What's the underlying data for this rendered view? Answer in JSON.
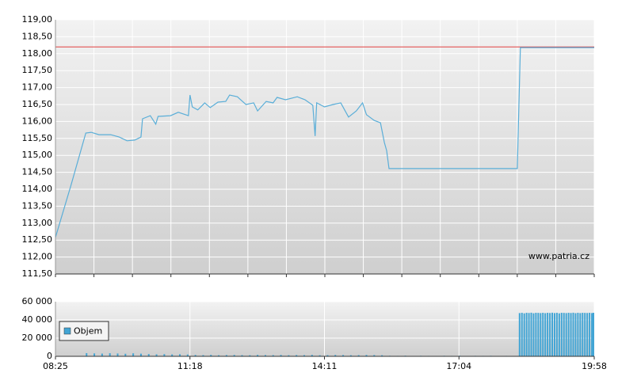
{
  "chart_data": [
    {
      "type": "line",
      "xlim": [
        505,
        1198
      ],
      "x_grid": [
        505,
        554.5,
        604,
        653.5,
        703,
        752.5,
        802,
        851.5,
        901,
        950.5,
        1000,
        1049.5,
        1099,
        1148.5,
        1198
      ],
      "ylim": [
        111.5,
        119
      ],
      "yticks": [
        {
          "value": 111.5,
          "label": "111,50"
        },
        {
          "value": 112,
          "label": "112,00"
        },
        {
          "value": 112.5,
          "label": "112,50"
        },
        {
          "value": 113,
          "label": "113,00"
        },
        {
          "value": 113.5,
          "label": "113,50"
        },
        {
          "value": 114,
          "label": "114,00"
        },
        {
          "value": 114.5,
          "label": "114,50"
        },
        {
          "value": 115,
          "label": "115,00"
        },
        {
          "value": 115.5,
          "label": "115,50"
        },
        {
          "value": 116,
          "label": "116,00"
        },
        {
          "value": 116.5,
          "label": "116,50"
        },
        {
          "value": 117,
          "label": "117,00"
        },
        {
          "value": 117.5,
          "label": "117,50"
        },
        {
          "value": 118,
          "label": "118,00"
        },
        {
          "value": 118.5,
          "label": "118,50"
        },
        {
          "value": 119,
          "label": "119,00"
        }
      ],
      "grid": true,
      "reference_line": 118.2,
      "reference_color": "#e04040",
      "watermark": "www.patria.cz",
      "series": [
        {
          "color": "#5aaed8",
          "x": [
            505,
            525,
            544,
            551,
            561,
            576,
            587,
            597,
            607,
            615,
            617,
            627,
            634,
            637,
            653,
            663,
            676,
            678,
            681,
            688,
            697,
            704,
            714,
            724,
            729,
            739,
            750,
            760,
            765,
            776,
            785,
            790,
            801,
            816,
            826,
            836,
            839,
            841,
            851,
            862,
            872,
            882,
            892,
            900,
            905,
            915,
            923,
            928,
            931,
            934,
            1099,
            1103,
            1198
          ],
          "values": [
            112.58,
            114.12,
            115.66,
            115.68,
            115.61,
            115.61,
            115.54,
            115.43,
            115.45,
            115.54,
            116.08,
            116.17,
            115.92,
            116.15,
            116.17,
            116.27,
            116.17,
            116.78,
            116.43,
            116.34,
            116.55,
            116.41,
            116.57,
            116.59,
            116.78,
            116.73,
            116.5,
            116.55,
            116.31,
            116.59,
            116.55,
            116.71,
            116.64,
            116.73,
            116.64,
            116.48,
            115.57,
            116.55,
            116.43,
            116.5,
            116.55,
            116.13,
            116.31,
            116.55,
            116.2,
            116.03,
            115.96,
            115.38,
            115.14,
            114.61,
            114.61,
            118.18,
            118.18
          ]
        }
      ]
    },
    {
      "type": "bar",
      "xlim": [
        505,
        1198
      ],
      "xticks": [
        {
          "value": 505,
          "label": "08:25"
        },
        {
          "value": 678,
          "label": "11:18"
        },
        {
          "value": 851,
          "label": "14:11"
        },
        {
          "value": 1024,
          "label": "17:04"
        },
        {
          "value": 1198,
          "label": "19:58"
        }
      ],
      "ylim": [
        0,
        60000
      ],
      "yticks": [
        0,
        {
          "value": 20000,
          "label": "20 000"
        },
        {
          "value": 40000,
          "label": "40 000"
        },
        {
          "value": 60000,
          "label": "60 000"
        }
      ],
      "grid": true,
      "legend": "upper left",
      "series": [
        {
          "name": "Objem",
          "color": "#42a5d5",
          "x": [
            545,
            555,
            565,
            575,
            585,
            595,
            605,
            615,
            625,
            635,
            645,
            655,
            665,
            675,
            685,
            695,
            705,
            715,
            725,
            735,
            745,
            755,
            765,
            775,
            785,
            795,
            805,
            815,
            825,
            835,
            845,
            855,
            865,
            875,
            885,
            895,
            905,
            915,
            925,
            935,
            945,
            955,
            965,
            975,
            985,
            995,
            1005,
            1015,
            1025,
            1035,
            1045,
            1055,
            1065,
            1075,
            1085,
            1095,
            1102,
            1105,
            1108,
            1111,
            1114,
            1117,
            1120,
            1123,
            1126,
            1129,
            1132,
            1135,
            1138,
            1141,
            1144,
            1147,
            1150,
            1153,
            1156,
            1159,
            1162,
            1165,
            1168,
            1171,
            1174,
            1177,
            1180,
            1183,
            1186,
            1189,
            1192,
            1195,
            1198
          ],
          "values": [
            3500,
            3200,
            3000,
            3400,
            3100,
            2800,
            3300,
            2900,
            2500,
            2200,
            2400,
            2100,
            2300,
            2000,
            1500,
            1300,
            1600,
            1200,
            1400,
            1500,
            1300,
            1200,
            1600,
            1400,
            1300,
            1500,
            1200,
            1400,
            1300,
            1600,
            1200,
            1300,
            1500,
            1400,
            1200,
            1300,
            1500,
            1400,
            1200,
            600,
            500,
            700,
            400,
            600,
            500,
            450,
            600,
            500,
            700,
            400,
            550,
            500,
            600,
            450,
            500,
            400,
            47500,
            47800,
            47200,
            47800,
            47600,
            47900,
            47300,
            47800,
            47700,
            47500,
            47800,
            47400,
            47800,
            47600,
            47900,
            47500,
            47800,
            47200,
            47800,
            47700,
            47500,
            47800,
            47600,
            47900,
            47400,
            47800,
            47500,
            47800,
            47700,
            47600,
            47800,
            47500,
            47800
          ]
        }
      ]
    }
  ]
}
